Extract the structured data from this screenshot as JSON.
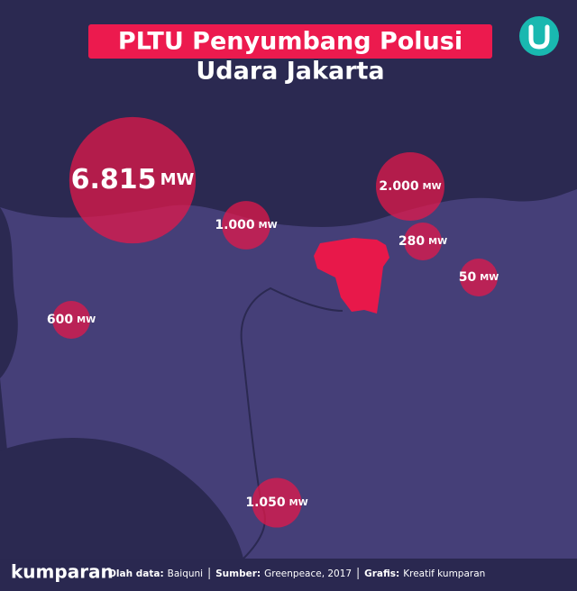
{
  "header": {
    "title_line1": "PLTU Penyumbang Polusi",
    "title_line2": "Udara Jakarta"
  },
  "bubbles": [
    {
      "value": 6815,
      "value_label": "6.815",
      "unit": "MW"
    },
    {
      "value": 1000,
      "value_label": "1.000",
      "unit": "MW"
    },
    {
      "value": 2000,
      "value_label": "2.000",
      "unit": "MW"
    },
    {
      "value": 280,
      "value_label": "280",
      "unit": "MW"
    },
    {
      "value": 50,
      "value_label": "50",
      "unit": "MW"
    },
    {
      "value": 600,
      "value_label": "600",
      "unit": "MW"
    },
    {
      "value": 1050,
      "value_label": "1.050",
      "unit": "MW"
    }
  ],
  "footer": {
    "brand": "kumparan",
    "credits": [
      {
        "key": "Olah data:",
        "text": "Baiquni"
      },
      {
        "key": "Sumber:",
        "text": "Greenpeace, 2017"
      },
      {
        "key": "Grafis:",
        "text": "Kreatif kumparan"
      }
    ]
  }
}
